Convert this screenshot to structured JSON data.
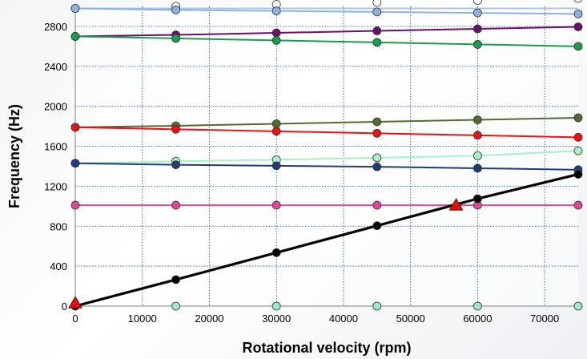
{
  "chart_data": {
    "type": "line",
    "title": "",
    "xlabel": "Rotational velocity (rpm)",
    "ylabel": "Frequency (Hz)",
    "xlim": [
      0,
      75000
    ],
    "ylim": [
      0,
      3000
    ],
    "grid": true,
    "x_ticks": [
      "0",
      "10000",
      "20000",
      "30000",
      "40000",
      "50000",
      "60000",
      "70000"
    ],
    "y_ticks": [
      "0",
      "400",
      "800",
      "1200",
      "1600",
      "2000",
      "2400",
      "2800"
    ],
    "x_tick_values": [
      0,
      10000,
      20000,
      30000,
      40000,
      50000,
      60000,
      70000
    ],
    "y_tick_values": [
      0,
      400,
      800,
      1200,
      1600,
      2000,
      2400,
      2800
    ],
    "series": [
      {
        "color": "#a9c6ea",
        "marker_color": "#ffffff",
        "line": true,
        "x": [
          0,
          75000
        ],
        "y": [
          2980,
          2980
        ],
        "markers_x": [
          0,
          15000,
          30000,
          45000,
          60000,
          75000
        ],
        "markers_y": [
          2980,
          3000,
          3020,
          3040,
          3060,
          3080
        ]
      },
      {
        "color": "#8fb3e0",
        "marker_color": "#8fb3e0",
        "line": true,
        "x": [
          0,
          15000,
          30000,
          45000,
          60000,
          75000
        ],
        "y": [
          2980,
          2965,
          2955,
          2945,
          2935,
          2925
        ]
      },
      {
        "color": "#6a0f6d",
        "marker_color": "#6a0f6d",
        "line": true,
        "x": [
          0,
          15000,
          30000,
          45000,
          60000,
          75000
        ],
        "y": [
          2700,
          2715,
          2735,
          2755,
          2775,
          2795
        ]
      },
      {
        "color": "#1a9e4b",
        "marker_color": "#1a9e4b",
        "line": true,
        "x": [
          0,
          15000,
          30000,
          45000,
          60000,
          75000
        ],
        "y": [
          2700,
          2680,
          2660,
          2640,
          2620,
          2600
        ]
      },
      {
        "color": "#556b2f",
        "marker_color": "#556b2f",
        "line": true,
        "x": [
          0,
          15000,
          30000,
          45000,
          60000,
          75000
        ],
        "y": [
          1790,
          1805,
          1825,
          1845,
          1865,
          1885
        ]
      },
      {
        "color": "#ee1111",
        "marker_color": "#ee1111",
        "line": true,
        "x": [
          0,
          15000,
          30000,
          45000,
          60000,
          75000
        ],
        "y": [
          1790,
          1770,
          1750,
          1730,
          1710,
          1690
        ]
      },
      {
        "color": "#a8f0c8",
        "marker_color": "#a8f0c8",
        "line": true,
        "x": [
          0,
          15000,
          30000,
          45000,
          60000,
          75000
        ],
        "y": [
          1430,
          1450,
          1465,
          1485,
          1505,
          1555
        ]
      },
      {
        "color": "#1f3d7a",
        "marker_color": "#1f3d7a",
        "line": true,
        "x": [
          0,
          15000,
          30000,
          45000,
          60000,
          75000
        ],
        "y": [
          1430,
          1415,
          1405,
          1395,
          1380,
          1365
        ]
      },
      {
        "color": "#e0499a",
        "marker_color": "#e0499a",
        "line": true,
        "x": [
          0,
          15000,
          30000,
          45000,
          60000,
          75000
        ],
        "y": [
          1010,
          1010,
          1010,
          1010,
          1010,
          1010
        ]
      },
      {
        "color": "#9fe8c4",
        "marker_color": "#9fe8c4",
        "line": false,
        "x": [
          15000,
          30000,
          45000,
          60000,
          75000
        ],
        "y": [
          0,
          0,
          0,
          0,
          0
        ]
      },
      {
        "color": "#000000",
        "marker_color": "#000000",
        "line": true,
        "width": 3.2,
        "x": [
          0,
          15000,
          30000,
          45000,
          60000,
          75000
        ],
        "y": [
          0,
          265,
          535,
          805,
          1075,
          1320
        ]
      }
    ],
    "annotations": [
      {
        "kind": "triangle-marker",
        "color": "#e81010",
        "x": 0,
        "y": 30
      },
      {
        "kind": "triangle-marker",
        "color": "#e81010",
        "x": 56800,
        "y": 1010
      }
    ]
  }
}
